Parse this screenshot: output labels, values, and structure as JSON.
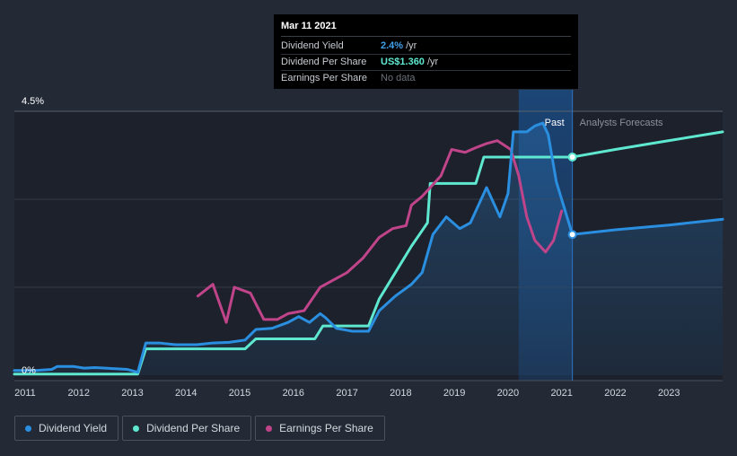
{
  "tooltip": {
    "date": "Mar 11 2021",
    "rows": [
      {
        "label": "Dividend Yield",
        "value": "2.4%",
        "unit": "/yr"
      },
      {
        "label": "Dividend Per Share",
        "value": "US$1.360",
        "unit": "/yr"
      },
      {
        "label": "Earnings Per Share",
        "value": "No data",
        "unit": ""
      }
    ]
  },
  "legend": [
    {
      "label": "Dividend Yield",
      "color": "#2a8fe0"
    },
    {
      "label": "Dividend Per Share",
      "color": "#5fe8d0"
    },
    {
      "label": "Earnings Per Share",
      "color": "#c0448a"
    }
  ],
  "chart_data": {
    "type": "line",
    "title": "",
    "x_ticks": [
      "2011",
      "2012",
      "2013",
      "2014",
      "2015",
      "2016",
      "2017",
      "2018",
      "2019",
      "2020",
      "2021",
      "2022",
      "2023"
    ],
    "xlim": [
      2010.8,
      2024.0
    ],
    "ylim": [
      0,
      4.5
    ],
    "y_tick_labels": [
      "4.5%",
      "0%"
    ],
    "past_label": "Past",
    "forecast_label": "Analysts Forecasts",
    "forecast_start": 2021.2,
    "shade_start": 2020.2,
    "colors": {
      "yield": "#2a8fe0",
      "dps": "#5fe8d0",
      "eps": "#c0448a"
    },
    "series": [
      {
        "name": "Dividend Yield",
        "unit": "%",
        "points": [
          [
            2010.8,
            0.08
          ],
          [
            2011.2,
            0.08
          ],
          [
            2011.5,
            0.1
          ],
          [
            2011.6,
            0.15
          ],
          [
            2011.9,
            0.15
          ],
          [
            2012.1,
            0.12
          ],
          [
            2012.3,
            0.13
          ],
          [
            2012.5,
            0.12
          ],
          [
            2012.9,
            0.1
          ],
          [
            2013.1,
            0.05
          ],
          [
            2013.25,
            0.55
          ],
          [
            2013.5,
            0.55
          ],
          [
            2013.8,
            0.52
          ],
          [
            2014.2,
            0.52
          ],
          [
            2014.5,
            0.55
          ],
          [
            2014.8,
            0.56
          ],
          [
            2015.1,
            0.6
          ],
          [
            2015.3,
            0.78
          ],
          [
            2015.6,
            0.8
          ],
          [
            2015.9,
            0.9
          ],
          [
            2016.1,
            1.0
          ],
          [
            2016.3,
            0.9
          ],
          [
            2016.5,
            1.05
          ],
          [
            2016.6,
            0.98
          ],
          [
            2016.8,
            0.8
          ],
          [
            2017.1,
            0.75
          ],
          [
            2017.4,
            0.75
          ],
          [
            2017.6,
            1.1
          ],
          [
            2017.9,
            1.35
          ],
          [
            2018.2,
            1.55
          ],
          [
            2018.4,
            1.75
          ],
          [
            2018.6,
            2.4
          ],
          [
            2018.85,
            2.7
          ],
          [
            2019.1,
            2.5
          ],
          [
            2019.3,
            2.6
          ],
          [
            2019.6,
            3.2
          ],
          [
            2019.85,
            2.7
          ],
          [
            2020.0,
            3.1
          ],
          [
            2020.1,
            4.15
          ],
          [
            2020.35,
            4.15
          ],
          [
            2020.5,
            4.25
          ],
          [
            2020.65,
            4.3
          ],
          [
            2020.75,
            4.1
          ],
          [
            2020.9,
            3.3
          ],
          [
            2021.2,
            2.4
          ],
          [
            2022.0,
            2.48
          ],
          [
            2023.0,
            2.56
          ],
          [
            2024.0,
            2.66
          ]
        ]
      },
      {
        "name": "Dividend Per Share",
        "unit": "US$",
        "points": [
          [
            2010.8,
            0.02
          ],
          [
            2013.1,
            0.02
          ],
          [
            2013.25,
            0.45
          ],
          [
            2015.1,
            0.45
          ],
          [
            2015.3,
            0.62
          ],
          [
            2016.4,
            0.62
          ],
          [
            2016.55,
            0.84
          ],
          [
            2017.4,
            0.84
          ],
          [
            2017.6,
            1.3
          ],
          [
            2017.9,
            1.75
          ],
          [
            2018.2,
            2.2
          ],
          [
            2018.5,
            2.6
          ],
          [
            2018.55,
            3.27
          ],
          [
            2019.4,
            3.27
          ],
          [
            2019.55,
            3.72
          ],
          [
            2021.2,
            3.72
          ],
          [
            2022.0,
            3.85
          ],
          [
            2023.0,
            4.0
          ],
          [
            2024.0,
            4.15
          ]
        ]
      },
      {
        "name": "Earnings Per Share",
        "unit": "US$",
        "points": [
          [
            2014.22,
            1.35
          ],
          [
            2014.5,
            1.55
          ],
          [
            2014.75,
            0.9
          ],
          [
            2014.9,
            1.5
          ],
          [
            2015.2,
            1.4
          ],
          [
            2015.45,
            0.95
          ],
          [
            2015.7,
            0.95
          ],
          [
            2015.9,
            1.05
          ],
          [
            2016.2,
            1.1
          ],
          [
            2016.5,
            1.5
          ],
          [
            2016.7,
            1.6
          ],
          [
            2017.0,
            1.75
          ],
          [
            2017.3,
            2.0
          ],
          [
            2017.6,
            2.35
          ],
          [
            2017.85,
            2.5
          ],
          [
            2018.1,
            2.55
          ],
          [
            2018.2,
            2.9
          ],
          [
            2018.4,
            3.05
          ],
          [
            2018.75,
            3.4
          ],
          [
            2018.95,
            3.85
          ],
          [
            2019.2,
            3.8
          ],
          [
            2019.4,
            3.88
          ],
          [
            2019.6,
            3.95
          ],
          [
            2019.8,
            4.0
          ],
          [
            2020.05,
            3.85
          ],
          [
            2020.2,
            3.4
          ],
          [
            2020.35,
            2.7
          ],
          [
            2020.5,
            2.3
          ],
          [
            2020.7,
            2.1
          ],
          [
            2020.85,
            2.3
          ],
          [
            2021.0,
            2.8
          ]
        ]
      }
    ],
    "markers": [
      {
        "series": "Dividend Yield",
        "x": 2021.2,
        "y": 2.4
      },
      {
        "series": "Dividend Per Share",
        "x": 2021.2,
        "y": 3.72
      }
    ]
  }
}
